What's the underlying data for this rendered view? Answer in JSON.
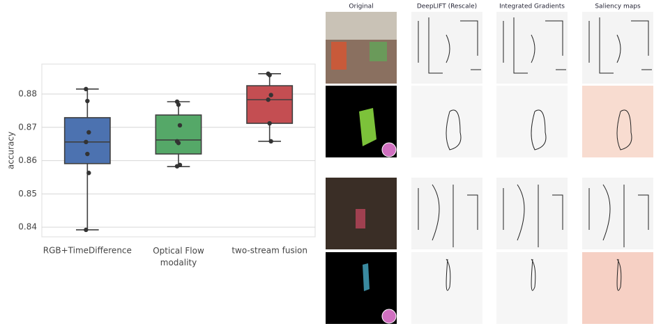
{
  "chart_data": {
    "type": "box",
    "y_label": "accuracy",
    "categories": [
      "RGB+TimeDifference",
      "Optical Flow\nmodality",
      "two-stream fusion"
    ],
    "boxes": [
      {
        "color": "#4c72b0",
        "whisker_low": 0.8392,
        "q1": 0.8591,
        "median": 0.8656,
        "q3": 0.8729,
        "whisker_high": 0.8815,
        "points": [
          0.8815,
          0.8779,
          0.8685,
          0.8656,
          0.862,
          0.8563,
          0.8392
        ]
      },
      {
        "color": "#55a868",
        "whisker_low": 0.8582,
        "q1": 0.862,
        "median": 0.8662,
        "q3": 0.8737,
        "whisker_high": 0.8777,
        "points": [
          0.8777,
          0.8768,
          0.8706,
          0.8658,
          0.8653,
          0.8587,
          0.8583
        ]
      },
      {
        "color": "#c44e52",
        "whisker_low": 0.8658,
        "q1": 0.8712,
        "median": 0.8783,
        "q3": 0.8825,
        "whisker_high": 0.8861,
        "points": [
          0.8861,
          0.8857,
          0.8797,
          0.8783,
          0.8712,
          0.8658
        ]
      }
    ],
    "ylim": [
      0.8371,
      0.889
    ],
    "yticks": [
      0.84,
      0.85,
      0.86,
      0.87,
      0.88
    ],
    "grid": true
  },
  "figure_panel": {
    "columns": [
      "Original",
      "DeepLIFT (Rescale)",
      "Integrated Gradients",
      "Saliency maps"
    ]
  }
}
